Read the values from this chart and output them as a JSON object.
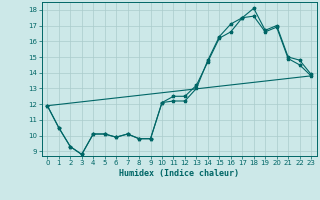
{
  "title": "",
  "xlabel": "Humidex (Indice chaleur)",
  "ylabel": "",
  "bg_color": "#cce8e8",
  "grid_color": "#aacccc",
  "line_color": "#006666",
  "xlim": [
    -0.5,
    23.5
  ],
  "ylim": [
    8.7,
    18.5
  ],
  "xticks": [
    0,
    1,
    2,
    3,
    4,
    5,
    6,
    7,
    8,
    9,
    10,
    11,
    12,
    13,
    14,
    15,
    16,
    17,
    18,
    19,
    20,
    21,
    22,
    23
  ],
  "yticks": [
    9,
    10,
    11,
    12,
    13,
    14,
    15,
    16,
    17,
    18
  ],
  "series1_x": [
    0,
    1,
    2,
    3,
    4,
    5,
    6,
    7,
    8,
    9,
    10,
    11,
    12,
    13,
    14,
    15,
    16,
    17,
    18,
    19,
    20,
    21,
    22,
    23
  ],
  "series1_y": [
    11.9,
    10.5,
    9.3,
    8.8,
    10.1,
    10.1,
    9.9,
    10.1,
    9.8,
    9.8,
    12.1,
    12.2,
    12.2,
    13.0,
    14.8,
    16.3,
    17.1,
    17.5,
    17.6,
    16.6,
    16.9,
    14.9,
    14.5,
    13.8
  ],
  "series2_x": [
    0,
    1,
    2,
    3,
    4,
    5,
    6,
    7,
    8,
    9,
    10,
    11,
    12,
    13,
    14,
    15,
    16,
    17,
    18,
    19,
    20,
    21,
    22,
    23
  ],
  "series2_y": [
    11.9,
    10.5,
    9.3,
    8.8,
    10.1,
    10.1,
    9.9,
    10.1,
    9.8,
    9.8,
    12.1,
    12.5,
    12.5,
    13.2,
    14.7,
    16.2,
    16.6,
    17.5,
    18.1,
    16.7,
    17.0,
    15.0,
    14.8,
    13.9
  ],
  "series3_x": [
    0,
    23
  ],
  "series3_y": [
    11.9,
    13.8
  ]
}
